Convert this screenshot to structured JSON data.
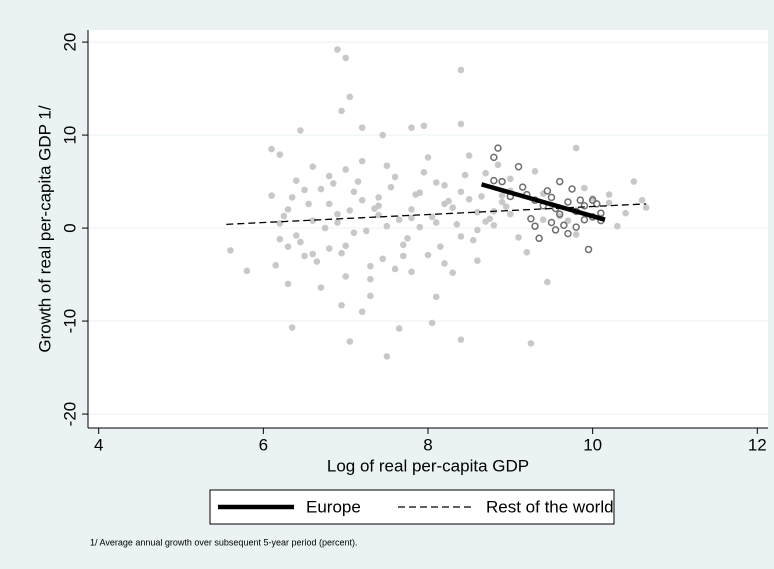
{
  "chart_data": {
    "type": "scatter",
    "xlabel": "Log of real per-capita GDP",
    "ylabel": "Growth of real per-capita GDP 1/",
    "footnote": "1/ Average annual growth over subsequent 5-year period (percent).",
    "xlim": [
      3.87,
      12.13
    ],
    "ylim": [
      -21.5,
      21.3
    ],
    "xticks": [
      4,
      6,
      8,
      10,
      12
    ],
    "yticks": [
      -20,
      -10,
      0,
      10,
      20
    ],
    "grid": true,
    "points": {
      "color": "#c8c8c8",
      "x": [
        5.6,
        5.8,
        6.1,
        6.35,
        6.9,
        7.0,
        7.05,
        6.95,
        7.05,
        7.5,
        7.65,
        8.05,
        8.4,
        8.4,
        9.25,
        7.2,
        7.45,
        7.8,
        7.95,
        8.4,
        6.45,
        6.2,
        6.3,
        7.2,
        7.3,
        6.95,
        9.45,
        8.1,
        6.1,
        6.2,
        6.3,
        6.4,
        6.5,
        6.6,
        6.7,
        6.8,
        6.9,
        7.0,
        7.1,
        7.2,
        7.3,
        7.4,
        7.5,
        7.6,
        7.7,
        7.8,
        7.9,
        8.0,
        8.1,
        8.2,
        8.3,
        8.4,
        8.5,
        8.6,
        8.7,
        8.8,
        8.9,
        9.0,
        6.15,
        6.25,
        6.35,
        6.45,
        6.55,
        6.65,
        6.75,
        6.85,
        6.95,
        7.05,
        7.15,
        7.25,
        7.35,
        7.45,
        7.55,
        7.65,
        7.75,
        7.85,
        7.95,
        8.05,
        8.15,
        8.25,
        8.35,
        8.45,
        8.55,
        8.65,
        8.75,
        8.85,
        8.95,
        6.2,
        6.4,
        6.6,
        6.8,
        7.0,
        7.2,
        7.4,
        7.6,
        7.8,
        8.0,
        8.2,
        8.4,
        8.6,
        8.8,
        9.0,
        9.2,
        9.4,
        9.6,
        9.8,
        10.0,
        10.2,
        10.4,
        10.6,
        6.3,
        6.5,
        6.7,
        6.9,
        7.1,
        7.3,
        7.5,
        7.7,
        7.9,
        8.1,
        8.3,
        8.5,
        8.7,
        8.9,
        9.1,
        9.3,
        9.5,
        9.7,
        9.9,
        10.1,
        10.3,
        10.5,
        10.65,
        6.6,
        6.8,
        7.0,
        7.4,
        7.8,
        8.2,
        8.6,
        9.0,
        9.4,
        9.8,
        10.2
      ],
      "values": [
        -2.4,
        -4.6,
        8.5,
        -10.7,
        19.2,
        18.3,
        14.1,
        12.6,
        -12.2,
        -13.8,
        -10.8,
        -10.2,
        17.0,
        -12.0,
        -12.4,
        10.8,
        10.0,
        10.8,
        11.0,
        11.2,
        10.5,
        7.9,
        -6.0,
        -9.0,
        -7.3,
        -8.3,
        -5.8,
        -7.4,
        3.5,
        -1.2,
        2.0,
        5.1,
        -3.0,
        0.8,
        4.2,
        -2.2,
        1.5,
        6.3,
        -0.5,
        3.0,
        -4.1,
        2.4,
        0.2,
        5.5,
        -1.8,
        1.1,
        3.8,
        -2.9,
        0.6,
        4.6,
        2.2,
        -0.9,
        3.1,
        1.7,
        5.9,
        0.3,
        2.8,
        4.0,
        -4.0,
        1.3,
        3.3,
        -1.5,
        2.6,
        -3.6,
        0.0,
        4.8,
        -2.7,
        1.9,
        5.0,
        -0.3,
        2.1,
        -3.3,
        4.4,
        0.9,
        -1.1,
        3.6,
        6.0,
        1.2,
        -2.0,
        2.9,
        0.4,
        5.7,
        -1.3,
        3.4,
        1.0,
        6.8,
        2.3,
        0.5,
        -0.8,
        6.6,
        2.6,
        -5.2,
        7.2,
        1.4,
        -4.4,
        2.0,
        7.6,
        -3.8,
        3.9,
        -0.2,
        1.8,
        5.3,
        -2.6,
        3.7,
        1.3,
        -0.7,
        3.2,
        2.7,
        1.6,
        3.0,
        -2.0,
        4.1,
        -6.4,
        0.6,
        3.9,
        -5.5,
        6.7,
        -3.0,
        0.1,
        4.9,
        -4.8,
        7.8,
        0.7,
        3.5,
        -1.0,
        6.1,
        2.5,
        0.8,
        4.3,
        1.1,
        0.2,
        5.0,
        2.2,
        -2.8,
        5.6,
        -1.9,
        3.3,
        -4.7,
        2.6,
        -3.5,
        1.5,
        0.9,
        8.6,
        3.6
      ]
    },
    "europe_points": {
      "color": "#6e6e6e",
      "x": [
        8.8,
        8.85,
        8.8,
        8.9,
        9.1,
        9.15,
        9.2,
        9.3,
        9.35,
        9.3,
        9.4,
        9.45,
        9.5,
        9.55,
        9.6,
        9.6,
        9.65,
        9.7,
        9.7,
        9.75,
        9.8,
        9.85,
        9.9,
        9.9,
        9.95,
        10.0,
        10.05,
        10.1,
        10.1,
        9.5,
        9.0,
        9.25,
        9.55,
        9.8,
        10.0
      ],
      "values": [
        7.6,
        8.6,
        5.1,
        5.0,
        6.6,
        4.4,
        3.6,
        3.0,
        -1.1,
        0.2,
        2.4,
        4.0,
        3.3,
        2.1,
        5.0,
        1.5,
        0.3,
        2.8,
        -0.6,
        4.2,
        1.8,
        3.0,
        0.9,
        2.4,
        -2.3,
        1.2,
        2.6,
        1.6,
        0.8,
        0.6,
        3.4,
        1.0,
        -0.2,
        0.1,
        3.0
      ]
    },
    "series": [
      {
        "name": "Europe",
        "color": "#000000",
        "dash": false,
        "x": [
          8.65,
          10.15
        ],
        "values": [
          4.7,
          0.9
        ]
      },
      {
        "name": "Rest of the world",
        "color": "#000000",
        "dash": true,
        "x": [
          5.55,
          10.65
        ],
        "values": [
          0.4,
          2.6
        ]
      }
    ]
  }
}
